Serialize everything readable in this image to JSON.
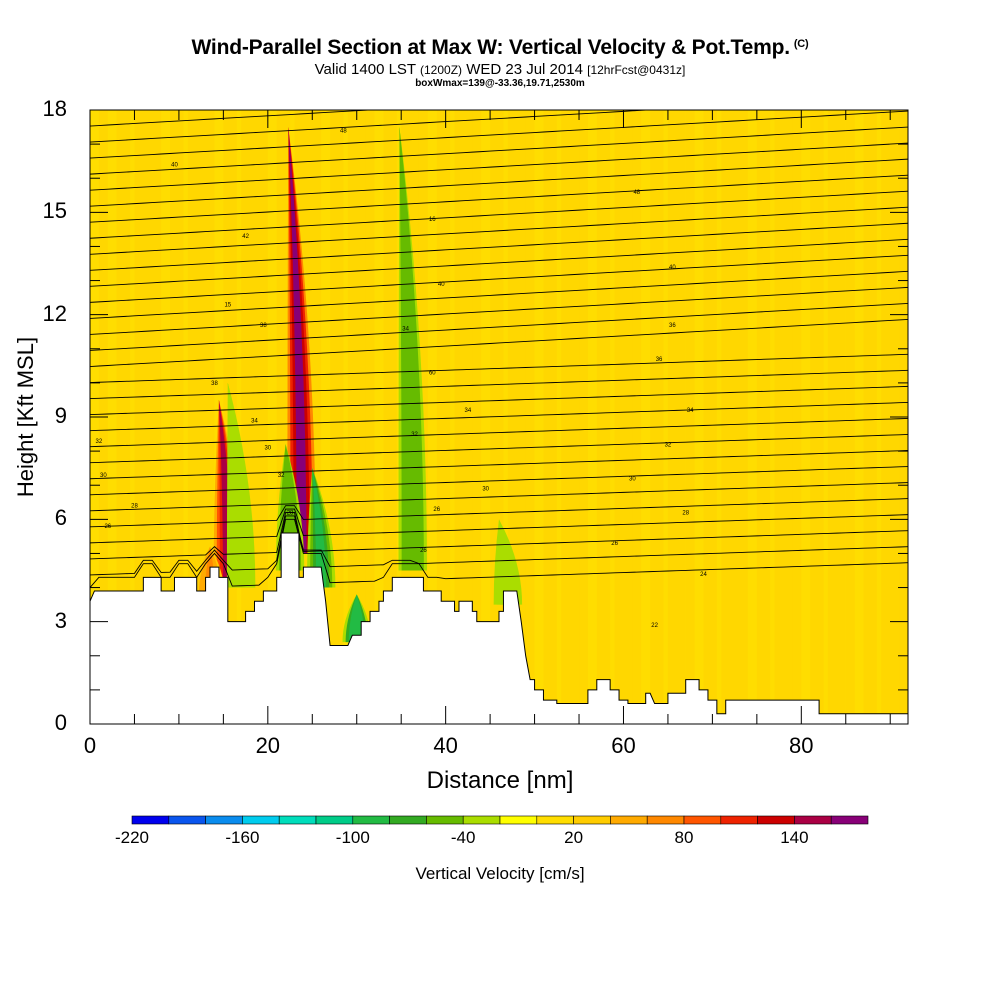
{
  "header": {
    "title": "Wind-Parallel Section at Max W: Vertical Velocity & Pot.Temp.",
    "copyright": "(C)",
    "valid_label": "Valid 1400 LST",
    "valid_utc": "(1200Z)",
    "valid_date": "WED 23 Jul 2014",
    "forecast": "[12hrFcst@0431z]",
    "box_info": "boxWmax=139@-33.36,19.71,2530m"
  },
  "chart_data": {
    "type": "heatmap",
    "title": "Wind-Parallel Section at Max W: Vertical Velocity & Pot.Temp.",
    "xlabel": "Distance [nm]",
    "ylabel": "Height [Kft MSL]",
    "xlim": [
      0,
      92
    ],
    "ylim": [
      0,
      18
    ],
    "x_ticks": [
      "0",
      "20",
      "40",
      "60",
      "80"
    ],
    "y_ticks": [
      "0",
      "3",
      "6",
      "9",
      "12",
      "15",
      "18"
    ],
    "x_tick_values": [
      0,
      20,
      40,
      60,
      80
    ],
    "y_tick_values": [
      0,
      3,
      6,
      9,
      12,
      15,
      18
    ],
    "background_value_cms": 10,
    "colorbar": {
      "label": "Vertical Velocity [cm/s]",
      "tick_labels": [
        "-220",
        "-160",
        "-100",
        "-40",
        "20",
        "80",
        "140"
      ],
      "tick_values": [
        -220,
        -160,
        -100,
        -40,
        20,
        80,
        140
      ],
      "range": [
        -220,
        180
      ],
      "colors": [
        "#0000ee",
        "#0a55ee",
        "#0a8cee",
        "#00ccee",
        "#00ddbb",
        "#00cc88",
        "#22bb44",
        "#33aa22",
        "#66bb00",
        "#aadd00",
        "#ffff00",
        "#ffdd00",
        "#ffcc00",
        "#ffaa00",
        "#ff8800",
        "#ff5500",
        "#ee2200",
        "#cc0000",
        "#aa0044",
        "#880077"
      ]
    },
    "velocity_columns": [
      {
        "x": 15.5,
        "top": 9.5,
        "bottom": 4.2,
        "peak": 140,
        "lean": -1.0
      },
      {
        "x": 23.8,
        "top": 17.5,
        "bottom": 5.0,
        "peak": 160,
        "lean": -1.5
      },
      {
        "x": 22.5,
        "top": 8.2,
        "bottom": 4.5,
        "peak": -60,
        "lean": -0.5
      },
      {
        "x": 26.0,
        "top": 7.5,
        "bottom": 4.0,
        "peak": -90,
        "lean": -1.0
      },
      {
        "x": 17.0,
        "top": 10.0,
        "bottom": 4.0,
        "peak": -30,
        "lean": -1.5
      },
      {
        "x": 36.3,
        "top": 17.5,
        "bottom": 4.5,
        "peak": -60,
        "lean": -1.5
      },
      {
        "x": 30.0,
        "top": 3.8,
        "bottom": 2.4,
        "peak": -100,
        "lean": 0
      },
      {
        "x": 47.0,
        "top": 6.0,
        "bottom": 3.5,
        "peak": -40,
        "lean": -1.0
      },
      {
        "x": 13.5,
        "top": 5.2,
        "bottom": 3.8,
        "peak": 60,
        "lean": 0
      }
    ],
    "terrain_kft": [
      [
        0,
        3.6
      ],
      [
        0.5,
        3.9
      ],
      [
        6,
        3.9
      ],
      [
        6,
        4.3
      ],
      [
        8,
        4.3
      ],
      [
        8,
        3.9
      ],
      [
        9.5,
        3.9
      ],
      [
        9.5,
        4.3
      ],
      [
        12,
        4.3
      ],
      [
        12,
        3.9
      ],
      [
        13,
        3.9
      ],
      [
        13,
        4.3
      ],
      [
        13.5,
        4.3
      ],
      [
        13.5,
        4.6
      ],
      [
        14.5,
        4.6
      ],
      [
        14.5,
        4.3
      ],
      [
        15.5,
        4.3
      ],
      [
        15.5,
        3.0
      ],
      [
        17.5,
        3.0
      ],
      [
        17.5,
        3.3
      ],
      [
        18.5,
        3.3
      ],
      [
        18.5,
        3.6
      ],
      [
        19.5,
        3.6
      ],
      [
        19.5,
        3.9
      ],
      [
        21,
        3.9
      ],
      [
        21,
        4.3
      ],
      [
        21.5,
        4.3
      ],
      [
        21.5,
        5.6
      ],
      [
        23.5,
        5.6
      ],
      [
        23.5,
        4.3
      ],
      [
        24,
        4.3
      ],
      [
        24,
        4.6
      ],
      [
        26,
        4.6
      ],
      [
        26.5,
        3.6
      ],
      [
        27,
        2.3
      ],
      [
        29,
        2.3
      ],
      [
        29.5,
        2.6
      ],
      [
        30.5,
        2.6
      ],
      [
        30.5,
        3.0
      ],
      [
        31.5,
        3.0
      ],
      [
        31.5,
        3.3
      ],
      [
        32.5,
        3.3
      ],
      [
        32.5,
        3.6
      ],
      [
        33,
        3.6
      ],
      [
        33,
        3.9
      ],
      [
        34,
        3.9
      ],
      [
        34,
        4.3
      ],
      [
        37.5,
        4.3
      ],
      [
        37.5,
        3.9
      ],
      [
        39.5,
        3.9
      ],
      [
        39.5,
        3.6
      ],
      [
        41,
        3.6
      ],
      [
        41,
        3.3
      ],
      [
        41.5,
        3.3
      ],
      [
        41.5,
        3.6
      ],
      [
        43,
        3.6
      ],
      [
        43,
        3.3
      ],
      [
        43.5,
        3.3
      ],
      [
        43.5,
        3.0
      ],
      [
        46,
        3.0
      ],
      [
        46,
        3.3
      ],
      [
        46.5,
        3.3
      ],
      [
        46.5,
        3.9
      ],
      [
        48,
        3.9
      ],
      [
        48.5,
        3.0
      ],
      [
        49,
        2.0
      ],
      [
        49.5,
        1.3
      ],
      [
        50,
        1.3
      ],
      [
        50,
        1.0
      ],
      [
        51,
        1.0
      ],
      [
        51,
        0.7
      ],
      [
        52.5,
        0.7
      ],
      [
        52.5,
        0.6
      ],
      [
        56,
        0.6
      ],
      [
        56,
        1.0
      ],
      [
        57,
        1.0
      ],
      [
        57,
        1.3
      ],
      [
        58.5,
        1.3
      ],
      [
        58.5,
        1.0
      ],
      [
        59.5,
        1.0
      ],
      [
        59.5,
        0.7
      ],
      [
        60.5,
        0.7
      ],
      [
        60.5,
        0.6
      ],
      [
        62.5,
        0.6
      ],
      [
        62.5,
        0.9
      ],
      [
        63,
        0.9
      ],
      [
        63.5,
        0.6
      ],
      [
        65,
        0.6
      ],
      [
        65,
        0.9
      ],
      [
        67,
        0.9
      ],
      [
        67,
        1.3
      ],
      [
        68.5,
        1.3
      ],
      [
        68.5,
        1.0
      ],
      [
        69.5,
        1.0
      ],
      [
        69.5,
        0.7
      ],
      [
        70.5,
        0.7
      ],
      [
        70.5,
        0.3
      ],
      [
        71.5,
        0.3
      ],
      [
        71.5,
        0.7
      ],
      [
        82,
        0.7
      ],
      [
        82,
        0.3
      ],
      [
        92,
        0.3
      ]
    ],
    "theta_label_positions": [
      {
        "x": 9.5,
        "y": 16.4,
        "label": "40"
      },
      {
        "x": 17.5,
        "y": 14.3,
        "label": "42"
      },
      {
        "x": 28.5,
        "y": 17.4,
        "label": "48"
      },
      {
        "x": 38.5,
        "y": 14.8,
        "label": "16"
      },
      {
        "x": 61.5,
        "y": 15.6,
        "label": "48"
      },
      {
        "x": 15.5,
        "y": 12.3,
        "label": "15"
      },
      {
        "x": 19.5,
        "y": 11.7,
        "label": "38"
      },
      {
        "x": 39.5,
        "y": 12.9,
        "label": "40"
      },
      {
        "x": 65.5,
        "y": 13.4,
        "label": "40"
      },
      {
        "x": 35.5,
        "y": 11.6,
        "label": "34"
      },
      {
        "x": 65.5,
        "y": 11.7,
        "label": "36"
      },
      {
        "x": 14,
        "y": 10.0,
        "label": "38"
      },
      {
        "x": 38.5,
        "y": 10.3,
        "label": "60"
      },
      {
        "x": 64,
        "y": 10.7,
        "label": "36"
      },
      {
        "x": 18.5,
        "y": 8.9,
        "label": "34"
      },
      {
        "x": 42.5,
        "y": 9.2,
        "label": "34"
      },
      {
        "x": 67.5,
        "y": 9.2,
        "label": "34"
      },
      {
        "x": 1,
        "y": 8.3,
        "label": "32"
      },
      {
        "x": 20,
        "y": 8.1,
        "label": "30"
      },
      {
        "x": 36.5,
        "y": 8.5,
        "label": "32"
      },
      {
        "x": 65,
        "y": 8.2,
        "label": "32"
      },
      {
        "x": 1.5,
        "y": 7.3,
        "label": "30"
      },
      {
        "x": 21.5,
        "y": 7.3,
        "label": "32"
      },
      {
        "x": 61,
        "y": 7.2,
        "label": "30"
      },
      {
        "x": 44.5,
        "y": 6.9,
        "label": "30"
      },
      {
        "x": 5,
        "y": 6.4,
        "label": "28"
      },
      {
        "x": 22.5,
        "y": 6.2,
        "label": "28"
      },
      {
        "x": 39,
        "y": 6.3,
        "label": "26"
      },
      {
        "x": 67,
        "y": 6.2,
        "label": "28"
      },
      {
        "x": 2,
        "y": 5.8,
        "label": "26"
      },
      {
        "x": 59,
        "y": 5.3,
        "label": "26"
      },
      {
        "x": 37.5,
        "y": 5.1,
        "label": "26"
      },
      {
        "x": 69,
        "y": 4.4,
        "label": "24"
      },
      {
        "x": 63.5,
        "y": 2.9,
        "label": "22"
      }
    ]
  }
}
